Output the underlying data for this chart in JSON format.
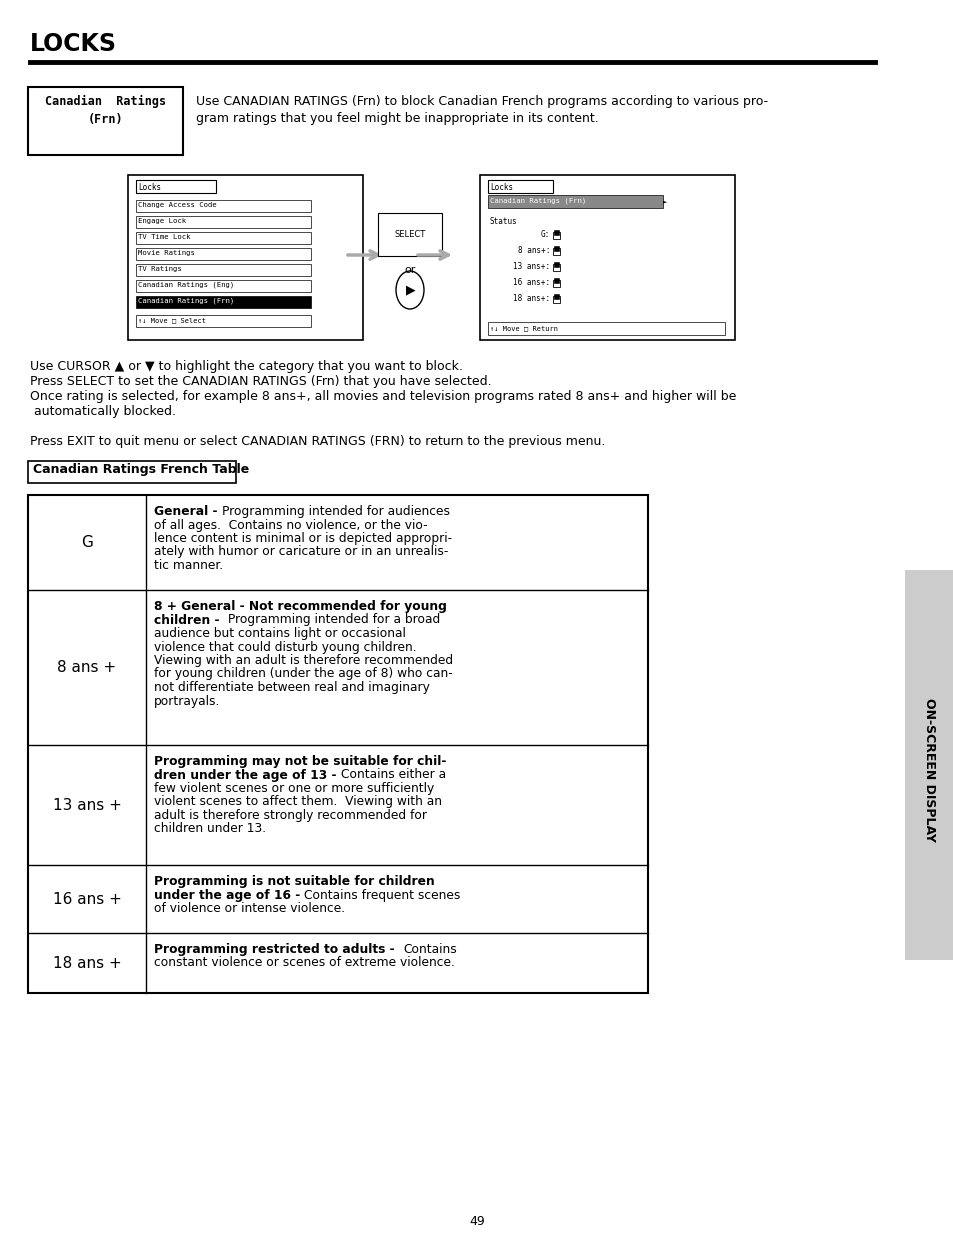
{
  "title": "LOCKS",
  "bg_color": "#ffffff",
  "page_number": "49",
  "header_label_line1": "Canadian  Ratings",
  "header_label_line2": "(Frn)",
  "header_text_line1": "Use CANADIAN RATINGS (Frn) to block Canadian French programs according to various pro-",
  "header_text_line2": "gram ratings that you feel might be inappropriate in its content.",
  "body_lines": [
    "Use CURSOR ▲ or ▼ to highlight the category that you want to block.",
    "Press SELECT to set the CANADIAN RATINGS (Frn) that you have selected.",
    "Once rating is selected, for example 8 ans+, all movies and television programs rated 8 ans+ and higher will be",
    " automatically blocked.",
    "",
    "Press EXIT to quit menu or select CANADIAN RATINGS (FRN) to return to the previous menu."
  ],
  "table_header_label": "Canadian Ratings French Table",
  "sidebar_text": "ON-SCREEN DISPLAY",
  "left_menu_items": [
    "Change Access Code",
    "Engage Lock",
    "TV Time Lock",
    "Movie Ratings",
    "TV Ratings",
    "Canadian Ratings (Eng)",
    "Canadian Ratings (Frn)"
  ],
  "right_ratings": [
    "G:",
    "8 ans+:",
    "13 ans+:",
    "16 ans+:",
    "18 ans+:"
  ],
  "table_rows": [
    {
      "label": "G",
      "lines": [
        {
          "bold": "General - ",
          "normal": "Programming intended for audiences"
        },
        {
          "bold": "",
          "normal": "of all ages.  Contains no violence, or the vio-"
        },
        {
          "bold": "",
          "normal": "lence content is minimal or is depicted appropri-"
        },
        {
          "bold": "",
          "normal": "ately with humor or caricature or in an unrealis-"
        },
        {
          "bold": "",
          "normal": "tic manner."
        }
      ]
    },
    {
      "label": "8 ans +",
      "lines": [
        {
          "bold": "8 + General - Not recommended for young",
          "normal": ""
        },
        {
          "bold": "children - ",
          "normal": " Programming intended for a broad"
        },
        {
          "bold": "",
          "normal": "audience but contains light or occasional"
        },
        {
          "bold": "",
          "normal": "violence that could disturb young children."
        },
        {
          "bold": "",
          "normal": "Viewing with an adult is therefore recommended"
        },
        {
          "bold": "",
          "normal": "for young children (under the age of 8) who can-"
        },
        {
          "bold": "",
          "normal": "not differentiate between real and imaginary"
        },
        {
          "bold": "",
          "normal": "portrayals."
        }
      ]
    },
    {
      "label": "13 ans +",
      "lines": [
        {
          "bold": "Programming may not be suitable for chil-",
          "normal": ""
        },
        {
          "bold": "dren under the age of 13 - ",
          "normal": "Contains either a"
        },
        {
          "bold": "",
          "normal": "few violent scenes or one or more sufficiently"
        },
        {
          "bold": "",
          "normal": "violent scenes to affect them.  Viewing with an"
        },
        {
          "bold": "",
          "normal": "adult is therefore strongly recommended for"
        },
        {
          "bold": "",
          "normal": "children under 13."
        }
      ]
    },
    {
      "label": "16 ans +",
      "lines": [
        {
          "bold": "Programming is not suitable for children",
          "normal": ""
        },
        {
          "bold": "under the age of 16 - ",
          "normal": "Contains frequent scenes"
        },
        {
          "bold": "",
          "normal": "of violence or intense violence."
        }
      ]
    },
    {
      "label": "18 ans +",
      "lines": [
        {
          "bold": "Programming restricted to adults -  ",
          "normal": "Contains"
        },
        {
          "bold": "",
          "normal": "constant violence or scenes of extreme violence."
        }
      ]
    }
  ]
}
